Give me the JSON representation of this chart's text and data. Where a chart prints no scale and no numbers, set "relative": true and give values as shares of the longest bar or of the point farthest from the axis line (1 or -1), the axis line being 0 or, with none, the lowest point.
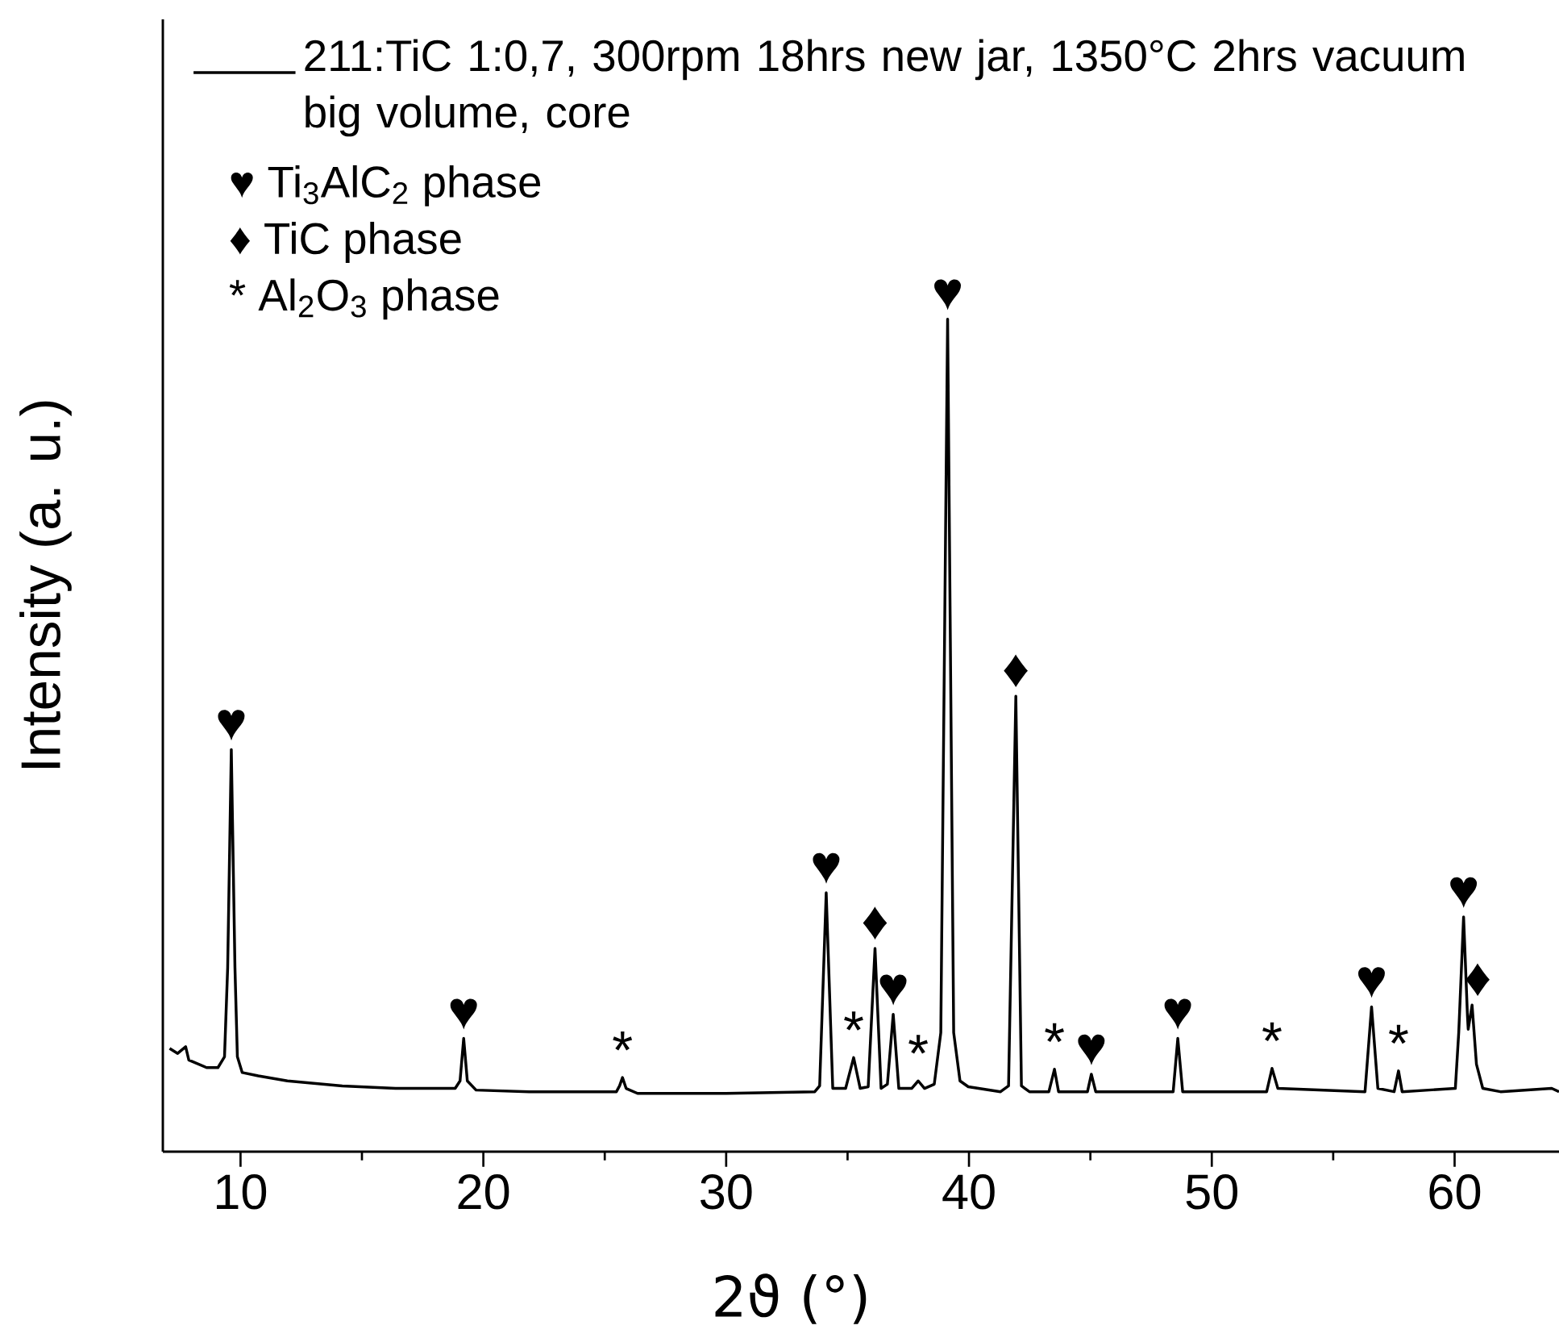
{
  "chart_data": {
    "type": "line",
    "relative": true,
    "xlabel": "2ϑ (°)",
    "ylabel": "Intensity (a. u.)",
    "xlim": [
      6.8,
      64.3
    ],
    "xticks": [
      10,
      20,
      30,
      40,
      50,
      60
    ],
    "legend": "top left",
    "series": [
      {
        "name": "211:TiC 1:0,7, 300rpm 18hrs new jar, 1350°C 2hrs vacuum big volume, core",
        "color": "#000000",
        "x": [
          7.08,
          7.41,
          7.74,
          7.87,
          8.6,
          9.07,
          9.34,
          9.47,
          9.62,
          9.77,
          9.87,
          10.07,
          10.73,
          11.93,
          14.19,
          16.38,
          18.84,
          19.04,
          19.19,
          19.34,
          19.7,
          21.89,
          25.48,
          25.61,
          25.73,
          25.88,
          26.35,
          30.0,
          33.65,
          33.85,
          34.12,
          34.39,
          34.92,
          35.25,
          35.52,
          35.85,
          36.13,
          36.38,
          36.64,
          36.88,
          37.11,
          37.64,
          37.91,
          38.17,
          38.57,
          38.84,
          39.12,
          39.37,
          39.63,
          39.97,
          41.3,
          41.63,
          41.93,
          42.16,
          42.49,
          43.29,
          43.52,
          43.69,
          44.88,
          45.04,
          45.22,
          48.41,
          48.6,
          48.8,
          52.26,
          52.48,
          52.72,
          56.31,
          56.58,
          56.84,
          57.51,
          57.69,
          57.84,
          60.03,
          60.17,
          60.37,
          60.53,
          60.56,
          60.72,
          60.9,
          61.16,
          61.89,
          64.0,
          64.3
        ],
        "values": [
          0.124,
          0.118,
          0.126,
          0.11,
          0.101,
          0.101,
          0.114,
          0.221,
          0.483,
          0.221,
          0.114,
          0.095,
          0.091,
          0.085,
          0.079,
          0.076,
          0.076,
          0.085,
          0.136,
          0.085,
          0.074,
          0.072,
          0.072,
          0.079,
          0.089,
          0.076,
          0.07,
          0.07,
          0.072,
          0.079,
          0.311,
          0.076,
          0.076,
          0.113,
          0.076,
          0.078,
          0.244,
          0.076,
          0.081,
          0.165,
          0.076,
          0.076,
          0.085,
          0.076,
          0.081,
          0.143,
          1.0,
          0.143,
          0.085,
          0.078,
          0.072,
          0.079,
          0.547,
          0.079,
          0.072,
          0.072,
          0.099,
          0.072,
          0.072,
          0.093,
          0.072,
          0.072,
          0.136,
          0.072,
          0.072,
          0.1,
          0.076,
          0.072,
          0.174,
          0.076,
          0.072,
          0.097,
          0.072,
          0.076,
          0.143,
          0.282,
          0.163,
          0.147,
          0.176,
          0.105,
          0.076,
          0.072,
          0.076,
          0.072
        ]
      }
    ],
    "annotations": [
      "♥ Ti$_{3}$AlC$_{2}$ phase",
      "♦ TiC phase",
      "* Al$_{2}$O$_{3}$ phase",
      {
        "text": "♥",
        "x": 9.62,
        "y": 0.483
      },
      {
        "text": "♥",
        "x": 19.19,
        "y": 0.136
      },
      {
        "text": "*",
        "x": 25.73,
        "y": 0.089
      },
      {
        "text": "♥",
        "x": 34.12,
        "y": 0.311
      },
      {
        "text": "*",
        "x": 35.25,
        "y": 0.113
      },
      {
        "text": "♦",
        "x": 36.13,
        "y": 0.244
      },
      {
        "text": "♥",
        "x": 36.88,
        "y": 0.165
      },
      {
        "text": "*",
        "x": 37.91,
        "y": 0.085
      },
      {
        "text": "♥",
        "x": 39.12,
        "y": 1.0
      },
      {
        "text": "♦",
        "x": 41.93,
        "y": 0.547
      },
      {
        "text": "*",
        "x": 43.52,
        "y": 0.099
      },
      {
        "text": "♥",
        "x": 45.04,
        "y": 0.093
      },
      {
        "text": "♥",
        "x": 48.6,
        "y": 0.136
      },
      {
        "text": "*",
        "x": 52.48,
        "y": 0.1
      },
      {
        "text": "♥",
        "x": 56.58,
        "y": 0.174
      },
      {
        "text": "*",
        "x": 57.69,
        "y": 0.097
      },
      {
        "text": "♥",
        "x": 60.37,
        "y": 0.282
      },
      {
        "text": "♦",
        "x": 60.95,
        "y": 0.176
      }
    ]
  }
}
